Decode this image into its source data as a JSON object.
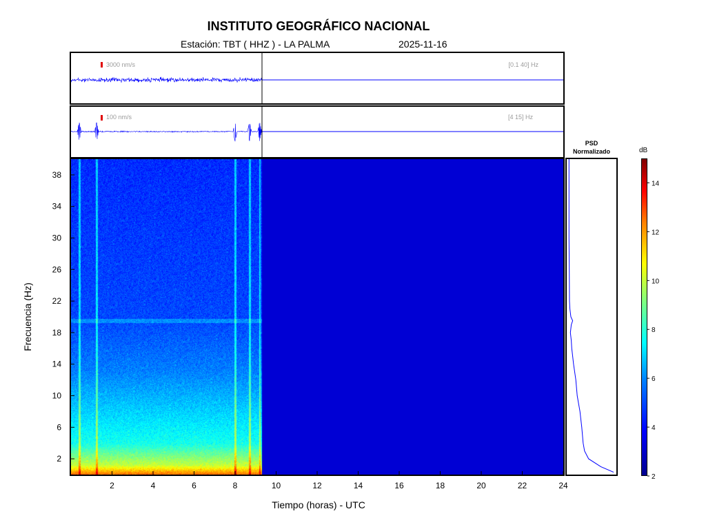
{
  "header": {
    "title": "INSTITUTO GEOGRÁFICO NACIONAL",
    "station": "Estación:  TBT ( HHZ ) - LA PALMA",
    "date": "2025-11-16"
  },
  "traces": [
    {
      "scale_label": "3000 nm/s",
      "band_label": "[0.1 40] Hz"
    },
    {
      "scale_label": "100 nm/s",
      "band_label": "[4 15] Hz"
    }
  ],
  "psd": {
    "title_line1": "PSD",
    "title_line2": "Normalizado"
  },
  "colorbar": {
    "unit": "dB",
    "ticks": [
      2,
      4,
      6,
      8,
      10,
      12,
      14
    ],
    "range": [
      2,
      15
    ]
  },
  "colors": {
    "trace": "#0000ff",
    "background_level": "#00008f",
    "scale_mark": "#e00000"
  },
  "chart_data": {
    "type": "heatmap",
    "title": "INSTITUTO GEOGRÁFICO NACIONAL",
    "xlabel": "Tiempo (horas) - UTC",
    "ylabel": "Frecuencia  (Hz)",
    "xlim": [
      0,
      24
    ],
    "ylim": [
      0,
      40
    ],
    "x_ticks": [
      2,
      4,
      6,
      8,
      10,
      12,
      14,
      16,
      18,
      20,
      22,
      24
    ],
    "y_ticks": [
      2,
      6,
      10,
      14,
      18,
      22,
      26,
      30,
      34,
      38
    ],
    "data_end_hour": 9.3,
    "energy_band_hz": 19.5,
    "transient_hours": [
      0.4,
      1.25,
      8.0,
      8.7,
      9.2
    ],
    "psd_profile": {
      "frequency_hz": [
        0.3,
        1,
        2,
        3,
        4,
        6,
        8,
        10,
        12,
        14,
        16,
        17,
        18,
        19,
        19.5,
        20,
        21,
        22,
        26,
        30,
        34,
        38,
        40
      ],
      "normalized": [
        1.0,
        0.72,
        0.45,
        0.36,
        0.33,
        0.3,
        0.26,
        0.2,
        0.17,
        0.12,
        0.08,
        0.07,
        0.05,
        0.07,
        0.1,
        0.06,
        0.04,
        0.03,
        0.025,
        0.02,
        0.02,
        0.02,
        0.02
      ]
    }
  }
}
